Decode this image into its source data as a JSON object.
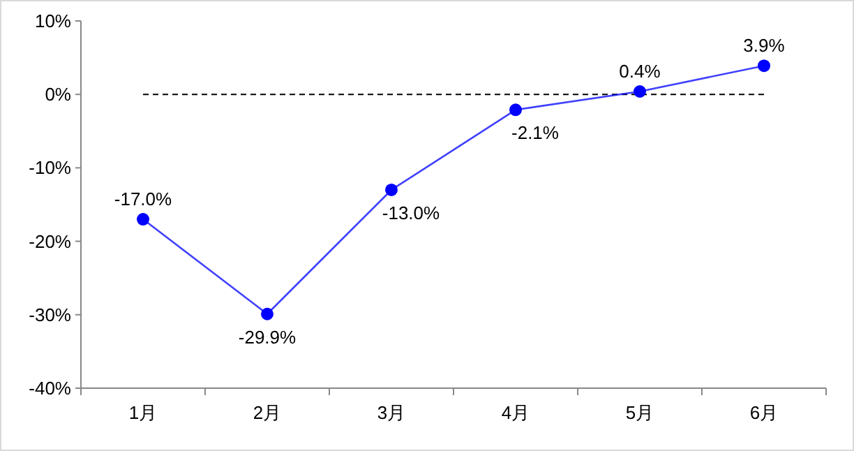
{
  "chart_data": {
    "type": "line",
    "categories": [
      "1月",
      "2月",
      "3月",
      "4月",
      "5月",
      "6月"
    ],
    "series": [
      {
        "color": "#0000ff",
        "values": [
          -17.0,
          -29.9,
          -13.0,
          -2.1,
          0.4,
          3.9
        ],
        "value_labels": [
          "-17.0%",
          "-29.9%",
          "-13.0%",
          "-2.1%",
          "0.4%",
          "3.9%"
        ]
      }
    ],
    "ylim": [
      -40,
      10
    ],
    "yticks": [
      {
        "value": -40,
        "label": "-40%"
      },
      {
        "value": -30,
        "label": "-30%"
      },
      {
        "value": -20,
        "label": "-20%"
      },
      {
        "value": -10,
        "label": "-10%"
      },
      {
        "value": 0,
        "label": "0%"
      },
      {
        "value": 10,
        "label": "10%"
      }
    ],
    "ref_lines": [
      {
        "axis": "y",
        "value": 0,
        "color": "#000000",
        "line_style": "dashed"
      }
    ],
    "marker": "circle",
    "grid": false
  }
}
